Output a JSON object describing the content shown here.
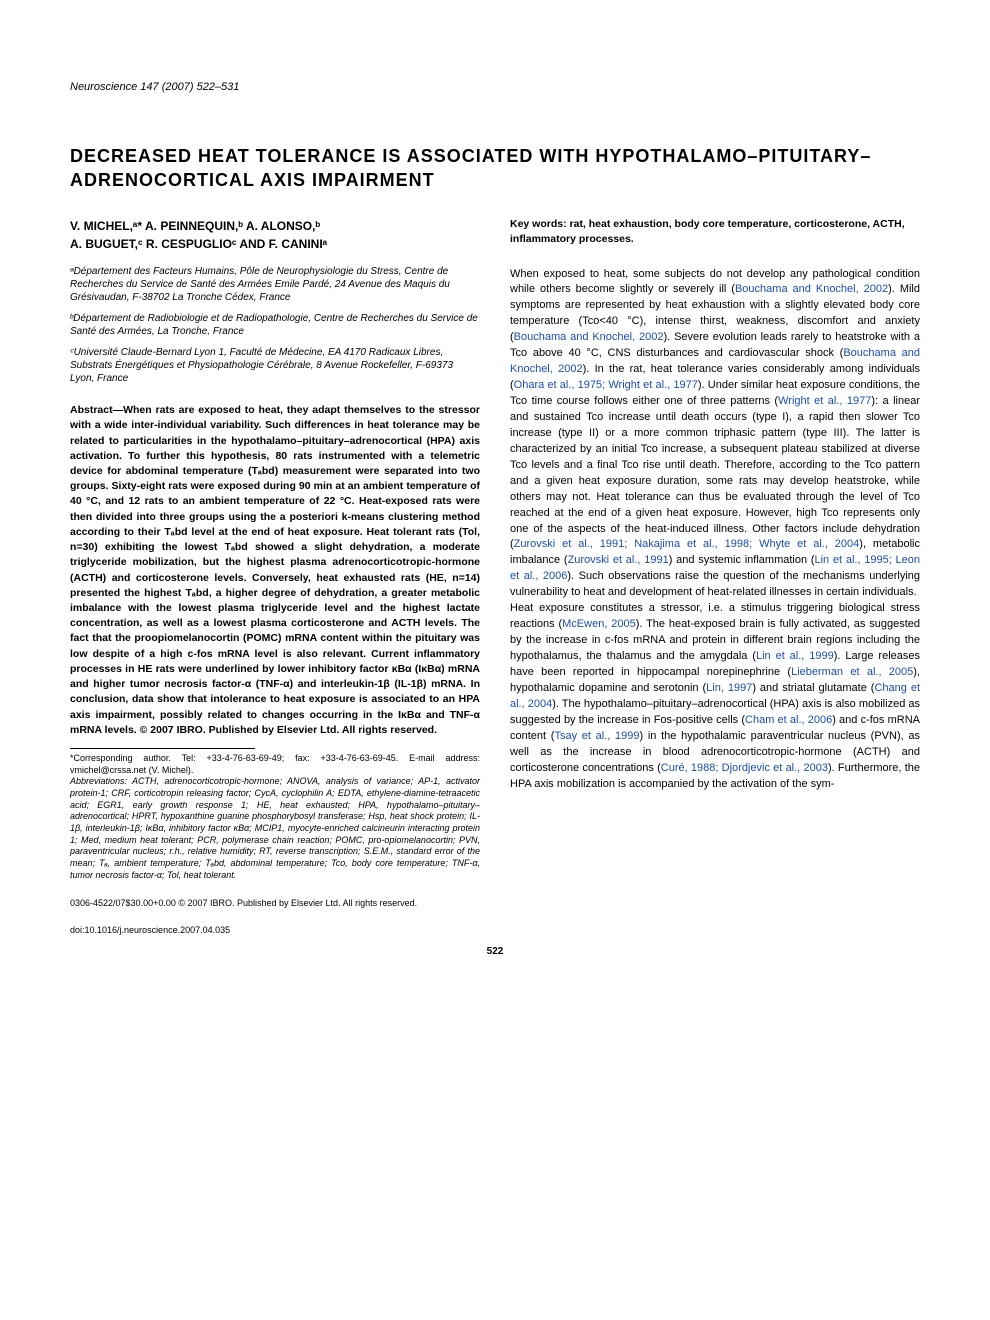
{
  "journal": "Neuroscience 147 (2007) 522–531",
  "title": "DECREASED HEAT TOLERANCE IS ASSOCIATED WITH HYPOTHALAMO–PITUITARY–ADRENOCORTICAL AXIS IMPAIRMENT",
  "authors_line1": "V. MICHEL,ᵃ* A. PEINNEQUIN,ᵇ A. ALONSO,ᵇ",
  "authors_line2": "A. BUGUET,ᶜ R. CESPUGLIOᶜ AND F. CANINIᵃ",
  "affiliations": {
    "a": "ᵃDépartement des Facteurs Humains, Pôle de Neurophysiologie du Stress, Centre de Recherches du Service de Santé des Armées Emile Pardé, 24 Avenue des Maquis du Grésivaudan, F-38702 La Tronche Cédex, France",
    "b": "ᵇDépartement de Radiobiologie et de Radiopathologie, Centre de Recherches du Service de Santé des Armées, La Tronche, France",
    "c": "ᶜUniversité Claude-Bernard Lyon 1, Faculté de Médecine, EA 4170 Radicaux Libres, Substrats Énergétiques et Physiopathologie Cérébrale, 8 Avenue Rockefeller, F-69373 Lyon, France"
  },
  "abstract": "Abstract—When rats are exposed to heat, they adapt themselves to the stressor with a wide inter-individual variability. Such differences in heat tolerance may be related to particularities in the hypothalamo–pituitary–adrenocortical (HPA) axis activation. To further this hypothesis, 80 rats instrumented with a telemetric device for abdominal temperature (Tₐbd) measurement were separated into two groups. Sixty-eight rats were exposed during 90 min at an ambient temperature of 40 °C, and 12 rats to an ambient temperature of 22 °C. Heat-exposed rats were then divided into three groups using the a posteriori k-means clustering method according to their Tₐbd level at the end of heat exposure. Heat tolerant rats (Tol, n=30) exhibiting the lowest Tₐbd showed a slight dehydration, a moderate triglyceride mobilization, but the highest plasma adrenocorticotropic-hormone (ACTH) and corticosterone levels. Conversely, heat exhausted rats (HE, n=14) presented the highest Tₐbd, a higher degree of dehydration, a greater metabolic imbalance with the lowest plasma triglyceride level and the highest lactate concentration, as well as a lowest plasma corticosterone and ACTH levels. The fact that the proopiomelanocortin (POMC) mRNA content within the pituitary was low despite of a high c-fos mRNA level is also relevant. Current inflammatory processes in HE rats were underlined by lower inhibitory factor κBα (IκBα) mRNA and higher tumor necrosis factor-α (TNF-α) and interleukin-1β (IL-1β) mRNA. In conclusion, data show that intolerance to heat exposure is associated to an HPA axis impairment, possibly related to changes occurring in the IκBα and TNF-α mRNA levels. © 2007 IBRO. Published by Elsevier Ltd. All rights reserved.",
  "corresponding": "*Corresponding author. Tel: +33-4-76-63-69-49; fax: +33-4-76-63-69-45. E-mail address: vmichel@crssa.net (V. Michel).",
  "abbreviations": "Abbreviations: ACTH, adrenocorticotropic-hormone; ANOVA, analysis of variance; AP-1, activator protein-1; CRF, corticotropin releasing factor; CycA, cyclophilin A; EDTA, ethylene-diamine-tetraacetic acid; EGR1, early growth response 1; HE, heat exhausted; HPA, hypothalamo–pituitary–adrenocortical; HPRT, hypoxanthine guanine phosphorybosyl transferase; Hsp, heat shock protein; IL-1β, interleukin-1β; IκBα, inhibitory factor κBα; MCIP1, myocyte-enriched calcineurin interacting protein 1; Med, medium heat tolerant; PCR, polymerase chain reaction; POMC, pro-opiomelanocortin; PVN, paraventricular nucleus; r.h., relative humidity; RT, reverse transcription; S.E.M., standard error of the mean; Tₐ, ambient temperature; Tₐbd, abdominal temperature; Tco, body core temperature; TNF-α, tumor necrosis factor-α; Tol, heat tolerant.",
  "keywords": "Key words: rat, heat exhaustion, body core temperature, corticosterone, ACTH, inflammatory processes.",
  "body": {
    "p1_a": "When exposed to heat, some subjects do not develop any pathological condition while others become slightly or severely ill (",
    "r1": "Bouchama and Knochel, 2002",
    "p1_b": "). Mild symptoms are represented by heat exhaustion with a slightly elevated body core temperature (Tco<40 °C), intense thirst, weakness, discomfort and anxiety (",
    "r2": "Bouchama and Knochel, 2002",
    "p1_c": "). Severe evolution leads rarely to heatstroke with a Tco above 40 °C, CNS disturbances and cardiovascular shock (",
    "r3": "Bouchama and Knochel, 2002",
    "p1_d": "). In the rat, heat tolerance varies considerably among individuals (",
    "r4": "Ohara et al., 1975; Wright et al., 1977",
    "p1_e": "). Under similar heat exposure conditions, the Tco time course follows either one of three patterns (",
    "r5": "Wright et al., 1977",
    "p1_f": "): a linear and sustained Tco increase until death occurs (type I), a rapid then slower Tco increase (type II) or a more common triphasic pattern (type III). The latter is characterized by an initial Tco increase, a subsequent plateau stabilized at diverse Tco levels and a final Tco rise until death. Therefore, according to the Tco pattern and a given heat exposure duration, some rats may develop heatstroke, while others may not. Heat tolerance can thus be evaluated through the level of Tco reached at the end of a given heat exposure. However, high Tco represents only one of the aspects of the heat-induced illness. Other factors include dehydration (",
    "r6": "Zurovski et al., 1991; Nakajima et al., 1998; Whyte et al., 2004",
    "p1_g": "), metabolic imbalance (",
    "r7": "Zurovski et al., 1991",
    "p1_h": ") and systemic inflammation (",
    "r8": "Lin et al., 1995; Leon et al., 2006",
    "p1_i": "). Such observations raise the question of the mechanisms underlying vulnerability to heat and development of heat-related illnesses in certain individuals.",
    "p2_a": "Heat exposure constitutes a stressor, i.e. a stimulus triggering biological stress reactions (",
    "r9": "McEwen, 2005",
    "p2_b": "). The heat-exposed brain is fully activated, as suggested by the increase in c-fos mRNA and protein in different brain regions including the hypothalamus, the thalamus and the amygdala (",
    "r10": "Lin et al., 1999",
    "p2_c": "). Large releases have been reported in hippocampal norepinephrine (",
    "r11": "Lieberman et al., 2005",
    "p2_d": "), hypothalamic dopamine and serotonin (",
    "r12": "Lin, 1997",
    "p2_e": ") and striatal glutamate (",
    "r13": "Chang et al., 2004",
    "p2_f": "). The hypothalamo–pituitary–adrenocortical (HPA) axis is also mobilized as suggested by the increase in Fos-positive cells (",
    "r14": "Cham et al., 2006",
    "p2_g": ") and c-fos mRNA content (",
    "r15": "Tsay et al., 1999",
    "p2_h": ") in the hypothalamic paraventricular nucleus (PVN), as well as the increase in blood adrenocorticotropic-hormone (ACTH) and corticosterone concentrations (",
    "r16": "Curé, 1988; Djordjevic et al., 2003",
    "p2_i": "). Furthermore, the HPA axis mobilization is accompanied by the activation of the sym-"
  },
  "copyright": "0306-4522/07$30.00+0.00 © 2007 IBRO. Published by Elsevier Ltd. All rights reserved.",
  "doi": "doi:10.1016/j.neuroscience.2007.04.035",
  "page_number": "522",
  "colors": {
    "link": "#1a4db3",
    "text": "#000000",
    "background": "#ffffff"
  }
}
